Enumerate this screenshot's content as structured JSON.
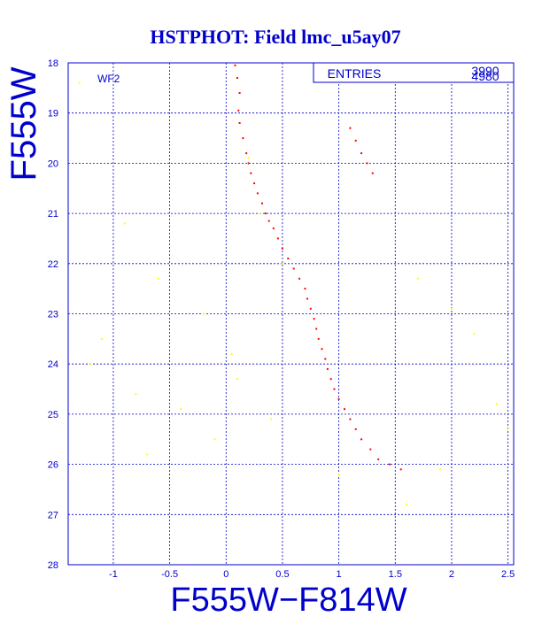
{
  "chart_data": {
    "type": "scatter",
    "title": "HSTPHOT: Field lmc_u5ay07",
    "xlabel": "F555W−F814W",
    "ylabel": "F555W",
    "panel_label": "WF2",
    "stats_label": "ENTRIES",
    "stats_values": [
      "3990",
      "4980"
    ],
    "xlim": [
      -1.4,
      2.55
    ],
    "ylim": [
      28,
      18
    ],
    "y_inverted": true,
    "grid": true,
    "x_ticks": [
      "-1",
      "-0.5",
      "0",
      "0.5",
      "1",
      "1.5",
      "2",
      "2.5"
    ],
    "y_ticks": [
      "18",
      "19",
      "20",
      "21",
      "22",
      "23",
      "24",
      "25",
      "26",
      "27",
      "28"
    ],
    "series": [
      {
        "color": "#ff0000",
        "points": [
          [
            0.08,
            18.05
          ],
          [
            0.1,
            18.3
          ],
          [
            0.12,
            18.6
          ],
          [
            0.11,
            18.95
          ],
          [
            0.12,
            19.2
          ],
          [
            0.15,
            19.5
          ],
          [
            0.18,
            19.8
          ],
          [
            0.2,
            20.0
          ],
          [
            0.22,
            20.2
          ],
          [
            0.25,
            20.4
          ],
          [
            0.28,
            20.6
          ],
          [
            0.32,
            20.8
          ],
          [
            0.35,
            21.0
          ],
          [
            0.38,
            21.15
          ],
          [
            0.42,
            21.3
          ],
          [
            0.46,
            21.5
          ],
          [
            0.5,
            21.7
          ],
          [
            0.55,
            21.9
          ],
          [
            0.6,
            22.1
          ],
          [
            0.65,
            22.3
          ],
          [
            0.7,
            22.5
          ],
          [
            0.72,
            22.7
          ],
          [
            0.75,
            22.9
          ],
          [
            0.78,
            23.1
          ],
          [
            0.8,
            23.3
          ],
          [
            0.82,
            23.5
          ],
          [
            0.85,
            23.7
          ],
          [
            0.88,
            23.9
          ],
          [
            0.9,
            24.1
          ],
          [
            0.93,
            24.3
          ],
          [
            0.96,
            24.5
          ],
          [
            1.0,
            24.7
          ],
          [
            1.05,
            24.9
          ],
          [
            1.1,
            25.1
          ],
          [
            1.15,
            25.3
          ],
          [
            1.2,
            25.5
          ],
          [
            1.28,
            25.7
          ],
          [
            1.35,
            25.9
          ],
          [
            1.45,
            26.0
          ],
          [
            1.55,
            26.1
          ],
          [
            1.1,
            19.3
          ],
          [
            1.15,
            19.55
          ],
          [
            1.2,
            19.8
          ],
          [
            1.25,
            20.0
          ],
          [
            1.3,
            20.2
          ]
        ]
      },
      {
        "color": "#ffff00",
        "points": [
          [
            -1.3,
            18.4
          ],
          [
            -0.9,
            21.2
          ],
          [
            -0.6,
            22.3
          ],
          [
            -0.2,
            23.0
          ],
          [
            -1.1,
            23.5
          ],
          [
            -0.8,
            24.6
          ],
          [
            -0.4,
            24.9
          ],
          [
            -0.1,
            25.5
          ],
          [
            0.05,
            23.8
          ],
          [
            0.2,
            19.9
          ],
          [
            0.3,
            21.0
          ],
          [
            0.5,
            22.0
          ],
          [
            1.7,
            22.3
          ],
          [
            2.0,
            22.9
          ],
          [
            2.2,
            23.4
          ],
          [
            2.4,
            24.8
          ],
          [
            2.5,
            25.3
          ],
          [
            1.9,
            26.1
          ],
          [
            1.6,
            26.8
          ],
          [
            -1.2,
            24.0
          ],
          [
            -0.7,
            25.8
          ],
          [
            0.1,
            24.3
          ],
          [
            0.4,
            25.1
          ],
          [
            1.0,
            26.2
          ]
        ]
      }
    ]
  }
}
